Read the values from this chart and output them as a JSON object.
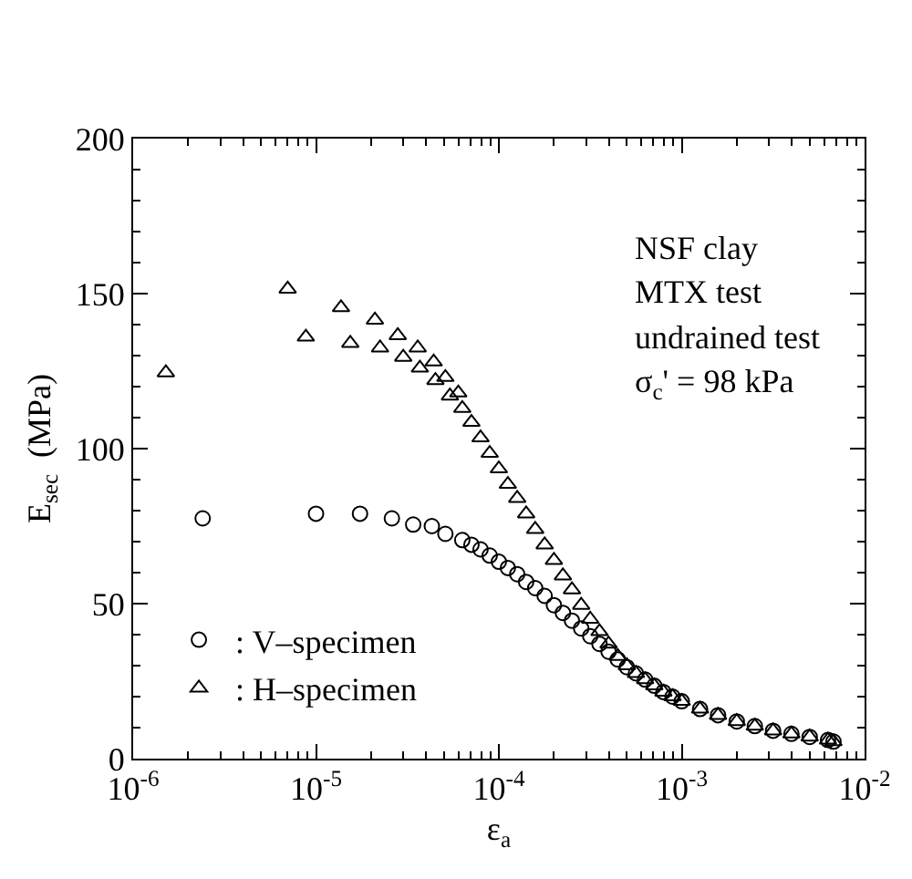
{
  "chart_data": {
    "type": "scatter",
    "xlabel": "ε$_{a}$",
    "ylabel": "E$_{sec}$  (MPa)",
    "annotations": [
      "NSF clay",
      "MTX test",
      "undrained test",
      "σ$_{c}$' = 98 kPa"
    ],
    "log": "x",
    "legend": "bottom left",
    "xlim": [
      1e-06,
      0.01
    ],
    "xticks": [
      {
        "value": 1e-06,
        "label": "10$^{-6}$"
      },
      {
        "value": 1e-05,
        "label": "10$^{-5}$"
      },
      {
        "value": 0.0001,
        "label": "10$^{-4}$"
      },
      {
        "value": 0.001,
        "label": "10$^{-3}$"
      },
      {
        "value": 0.01,
        "label": "10$^{-2}$"
      }
    ],
    "ylim": [
      0,
      200
    ],
    "yticks": [
      0,
      50,
      100,
      150,
      200
    ],
    "series": [
      {
        "name": ": V–specimen",
        "color": "#000000",
        "marker": "circle",
        "x": [
          2.4e-06,
          1e-05,
          1.74e-05,
          2.6e-05,
          3.4e-05,
          4.3e-05,
          5.1e-05,
          6.31e-05,
          7.08e-05,
          7.94e-05,
          8.91e-05,
          0.0001,
          0.000112,
          0.000126,
          0.000141,
          0.000158,
          0.000178,
          0.0002,
          0.000224,
          0.000251,
          0.000282,
          0.000316,
          0.000355,
          0.000398,
          0.000447,
          0.000501,
          0.000562,
          0.000631,
          0.000708,
          0.000794,
          0.000891,
          0.001,
          0.00126,
          0.00158,
          0.002,
          0.00251,
          0.00316,
          0.00398,
          0.00501,
          0.00631,
          0.00676
        ],
        "values": [
          77.5,
          79,
          79,
          77.5,
          75.5,
          75,
          72.5,
          70.5,
          69,
          67.5,
          65.5,
          63.5,
          61.5,
          59.5,
          57,
          55,
          52.5,
          49.5,
          47,
          44.5,
          42,
          39.5,
          37,
          34.5,
          32,
          29.5,
          27.5,
          25.5,
          23.5,
          21.5,
          20,
          18.5,
          16,
          14,
          12,
          10.5,
          9,
          8,
          7,
          6,
          5.5
        ]
      },
      {
        "name": ": H–specimen",
        "color": "#000000",
        "marker": "triangle",
        "x": [
          1.51e-06,
          7e-06,
          8.8e-06,
          1.37e-05,
          1.54e-05,
          2.1e-05,
          2.24e-05,
          2.8e-05,
          3e-05,
          3.6e-05,
          3.7e-05,
          4.4e-05,
          4.5e-05,
          5.1e-05,
          5.4e-05,
          6e-05,
          6.31e-05,
          7.08e-05,
          7.94e-05,
          8.91e-05,
          0.0001,
          0.000112,
          0.000126,
          0.000141,
          0.000158,
          0.000178,
          0.0002,
          0.000224,
          0.000251,
          0.000282,
          0.000316,
          0.000355,
          0.000398,
          0.000447,
          0.000501,
          0.000562,
          0.000631,
          0.000708,
          0.000794,
          0.000891,
          0.001,
          0.00126,
          0.00158,
          0.002,
          0.00251,
          0.00316,
          0.00398,
          0.00501,
          0.00631,
          0.00676
        ],
        "values": [
          124.5,
          151.5,
          136,
          145.5,
          134,
          141.5,
          132.5,
          136.5,
          129.5,
          132.5,
          126,
          128,
          122,
          123,
          117,
          118,
          113,
          108.5,
          103.5,
          98.5,
          93.5,
          88.5,
          84,
          79,
          74,
          69,
          64,
          59,
          54.5,
          49.5,
          45,
          41,
          37,
          33,
          30,
          27.5,
          25.5,
          23.5,
          21.5,
          20,
          18.5,
          16,
          14,
          12,
          10.5,
          9,
          8,
          7,
          6,
          5.5
        ]
      }
    ]
  }
}
